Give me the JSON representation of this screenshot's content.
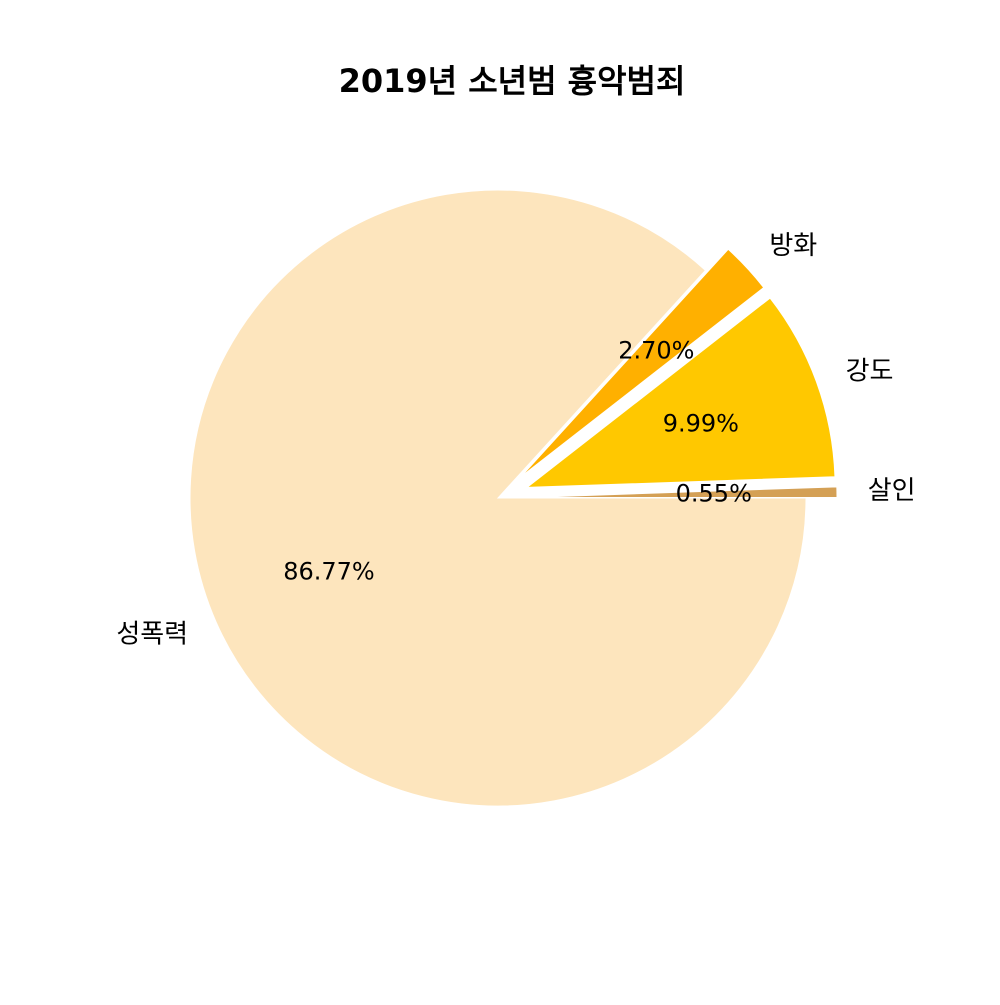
{
  "chart_data": {
    "type": "pie",
    "title": "2019년 소년범 흉악범죄",
    "slices": [
      {
        "label": "성폭력",
        "value": 86.77,
        "pct_text": "86.77%",
        "color": "#FDE5BD",
        "exploded": false
      },
      {
        "label": "방화",
        "value": 2.7,
        "pct_text": "2.70%",
        "color": "#FFB000",
        "exploded": true
      },
      {
        "label": "강도",
        "value": 9.99,
        "pct_text": "9.99%",
        "color": "#FFC800",
        "exploded": true
      },
      {
        "label": "살인",
        "value": 0.55,
        "pct_text": "0.55%",
        "color": "#D4A055",
        "exploded": true
      }
    ],
    "start_angle_deg": 0,
    "direction": "clockwise",
    "legend": "none",
    "edge_color": "#ffffff"
  }
}
